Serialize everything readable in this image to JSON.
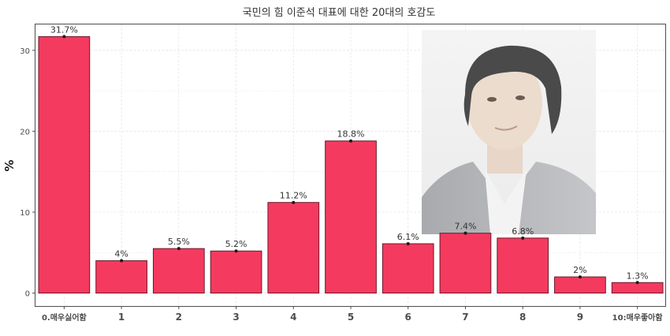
{
  "chart_data": {
    "type": "bar",
    "title": "국민의 힘 이준석 대표에 대한 20대의 호감도",
    "xlabel": "",
    "ylabel": "%",
    "categories": [
      "0.매우싫어함",
      "1",
      "2",
      "3",
      "4",
      "5",
      "6",
      "7",
      "8",
      "9",
      "10:매우좋아함"
    ],
    "values": [
      31.7,
      4,
      5.5,
      5.2,
      11.2,
      18.8,
      6.1,
      7.4,
      6.8,
      2,
      1.3
    ],
    "value_labels": [
      "31.7%",
      "4%",
      "5.5%",
      "5.2%",
      "11.2%",
      "18.8%",
      "6.1%",
      "7.4%",
      "6.8%",
      "2%",
      "1.3%"
    ],
    "yticks": [
      0,
      10,
      20,
      30
    ],
    "ylim": [
      -1.6,
      33.2
    ],
    "grid": true,
    "legend": "none",
    "colors": {
      "bar_fill": "#f43a5f",
      "bar_stroke": "#6b1a2a",
      "grid": "#e6e6e6",
      "panel_border": "#4d4d4d"
    }
  },
  "photo": {
    "icon": "portrait-photo"
  }
}
